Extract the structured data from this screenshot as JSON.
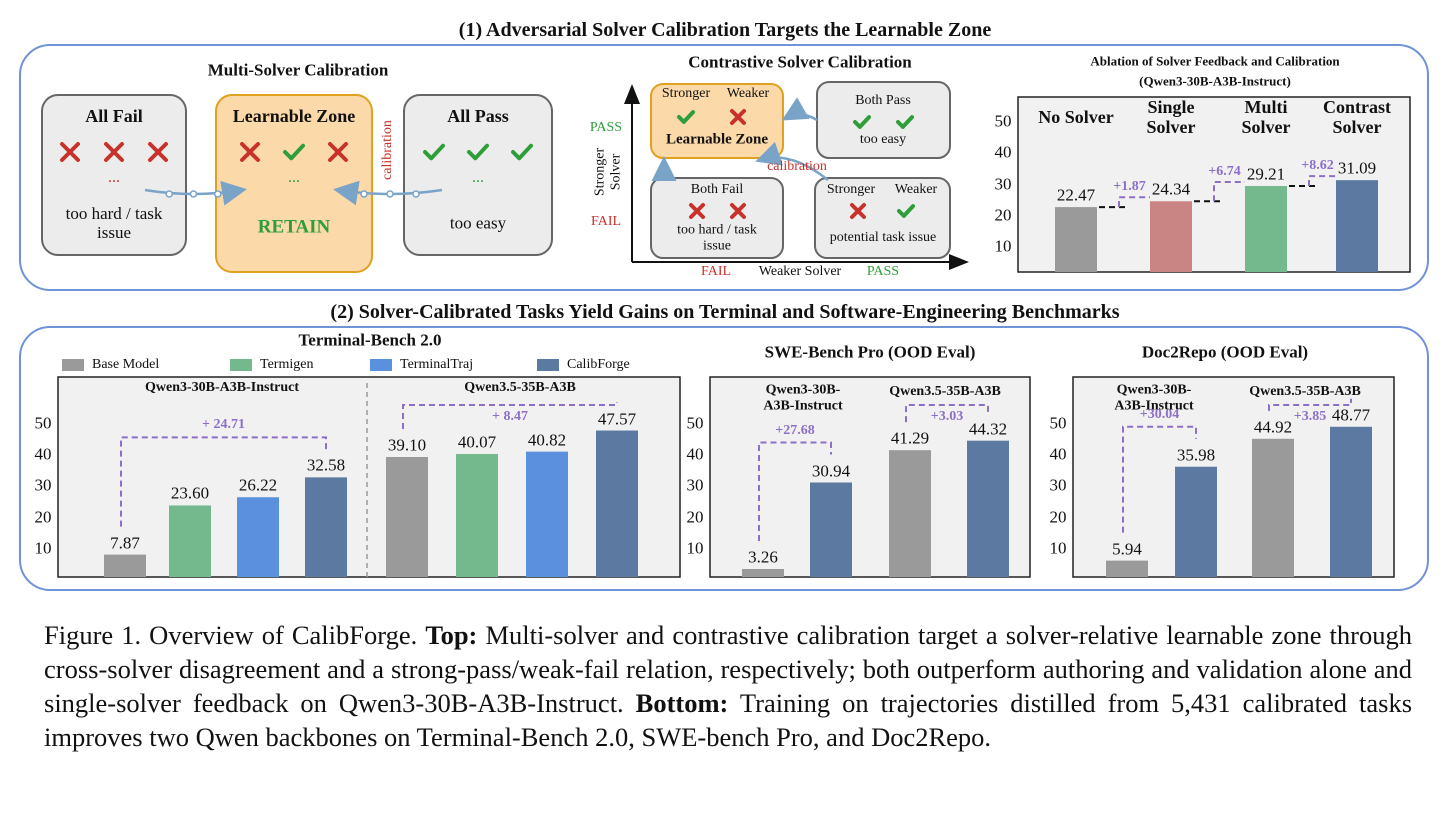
{
  "figure": {
    "section1_title": "(1) Adversarial Solver Calibration Targets the Learnable Zone",
    "section2_title": "(2) Solver-Calibrated Tasks Yield Gains on Terminal and Software-Engineering Benchmarks"
  },
  "multi_solver": {
    "title": "Multi-Solver Calibration",
    "boxes": [
      {
        "title": "All Fail",
        "ellipsis": "...",
        "note": "too hard / task issue"
      },
      {
        "title": "Learnable Zone",
        "ellipsis": "...",
        "note": "RETAIN"
      },
      {
        "title": "All Pass",
        "ellipsis": "...",
        "note": "too easy"
      }
    ],
    "calibration": "calibration"
  },
  "contrastive": {
    "title": "Contrastive Solver Calibration",
    "y_axis": {
      "title": "Stronger Solver",
      "top": "PASS",
      "bottom": "FAIL"
    },
    "x_axis": {
      "title": "Weaker Solver",
      "left": "FAIL",
      "right": "PASS"
    },
    "boxes": [
      {
        "labels": [
          "Stronger",
          "Weaker"
        ],
        "note": "Learnable Zone"
      },
      {
        "title": "Both Pass",
        "note": "too easy"
      },
      {
        "title": "Both Fail",
        "note": "too hard / task issue"
      },
      {
        "labels": [
          "Stronger",
          "Weaker"
        ],
        "note": "potential task issue"
      }
    ],
    "calibration": "calibration"
  },
  "chart_data": [
    {
      "type": "bar",
      "title": "Ablation of Solver Feedback and Calibration",
      "subtitle": "(Qwen3-30B-A3B-Instruct)",
      "categories": [
        "No Solver",
        "Single Solver",
        "Multi Solver",
        "Contrast Solver"
      ],
      "values": [
        22.47,
        24.34,
        29.21,
        31.09
      ],
      "colors": [
        "#9a9a9a",
        "#c98484",
        "#74b98e",
        "#5b79a1"
      ],
      "annotations": [
        {
          "value": 1.87,
          "label": "+1.87"
        },
        {
          "value": 6.74,
          "label": "+6.74"
        },
        {
          "value": 8.62,
          "label": "+8.62"
        }
      ],
      "ylim": [
        1.7,
        57.7
      ],
      "yticks": [
        10,
        20,
        30,
        40,
        50
      ]
    },
    {
      "type": "bar",
      "title": "Terminal-Bench 2.0",
      "categories": [
        "Qwen3-30B-A3B-Instruct",
        "Qwen3.5-35B-A3B"
      ],
      "series": [
        {
          "name": "Base Model",
          "color": "#9a9a9a",
          "values": [
            7.87,
            39.1
          ],
          "value_labels": [
            "7.87",
            "39.10"
          ]
        },
        {
          "name": "Termigen",
          "color": "#74b98e",
          "values": [
            23.6,
            40.07
          ],
          "value_labels": [
            "23.60",
            "40.07"
          ]
        },
        {
          "name": "TerminalTraj",
          "color": "#5b90de",
          "values": [
            26.22,
            40.82
          ]
        },
        {
          "name": "CalibForge",
          "color": "#5b79a1",
          "values": [
            32.58,
            47.57
          ]
        }
      ],
      "annotations": [
        {
          "value": 24.71,
          "label": "+ 24.71"
        },
        {
          "value": 8.47,
          "label": "+ 8.47"
        }
      ],
      "ylim": [
        0.7,
        64.7
      ],
      "yticks": [
        10,
        20,
        30,
        40,
        50
      ]
    },
    {
      "type": "bar",
      "title": "SWE-Bench Pro (OOD Eval)",
      "categories": [
        "Qwen3-30B-A3B-Instruct",
        "Qwen3.5-35B-A3B"
      ],
      "series": [
        {
          "color": "#9a9a9a",
          "values": [
            3.26,
            41.29
          ]
        },
        {
          "color": "#5b79a1",
          "values": [
            30.94,
            44.32
          ]
        }
      ],
      "annotations": [
        {
          "value": 27.68,
          "label": "+27.68"
        },
        {
          "value": 3.03,
          "label": "+3.03"
        }
      ],
      "ylim": [
        0.7,
        64.7
      ],
      "yticks": [
        10,
        20,
        30,
        40,
        50
      ]
    },
    {
      "type": "bar",
      "title": "Doc2Repo (OOD Eval)",
      "categories": [
        "Qwen3-30B-A3B-Instruct",
        "Qwen3.5-35B-A3B"
      ],
      "series": [
        {
          "color": "#9a9a9a",
          "values": [
            5.94,
            44.92
          ]
        },
        {
          "color": "#5b79a1",
          "values": [
            35.98,
            48.77
          ]
        }
      ],
      "annotations": [
        {
          "value": 30.04,
          "label": "+30.04"
        },
        {
          "value": 3.85,
          "label": "+3.85"
        }
      ],
      "ylim": [
        0.7,
        64.7
      ],
      "yticks": [
        10,
        20,
        30,
        40,
        50
      ]
    }
  ],
  "caption": {
    "label": "Figure 1. Overview of CalibForge.",
    "top_label": "Top:",
    "top_text": "Multi-solver and contrastive calibration target a solver-relative learnable zone through cross-solver disagreement and a strong-pass/weak-fail relation, respectively; both outperform authoring and validation alone and single-solver feedback on Qwen3-30B-A3B-Instruct.",
    "bottom_label": "Bottom:",
    "bottom_text": "Training on trajectories distilled from 5,431 calibrated tasks improves two Qwen backbones on Terminal-Bench 2.0, SWE-bench Pro, and Doc2Repo."
  }
}
